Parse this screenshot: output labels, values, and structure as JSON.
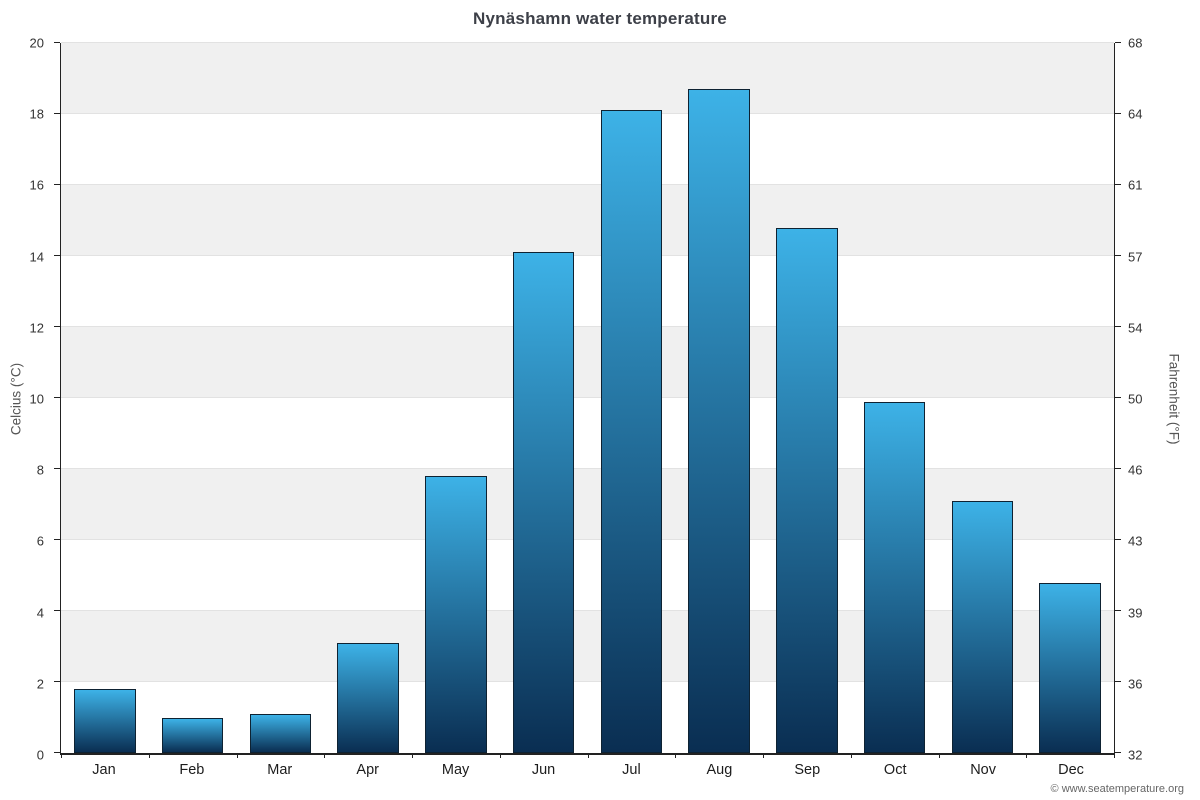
{
  "chart_data": {
    "type": "bar",
    "title": "Nynäshamn water temperature",
    "ylabel_left": "Celcius (°C)",
    "ylabel_right": "Fahrenheit (°F)",
    "categories": [
      "Jan",
      "Feb",
      "Mar",
      "Apr",
      "May",
      "Jun",
      "Jul",
      "Aug",
      "Sep",
      "Oct",
      "Nov",
      "Dec"
    ],
    "values": [
      1.8,
      1.0,
      1.1,
      3.1,
      7.8,
      14.1,
      18.1,
      18.7,
      14.8,
      9.9,
      7.1,
      4.8
    ],
    "ylim": [
      0,
      20
    ],
    "yticks_celsius": [
      0,
      2,
      4,
      6,
      8,
      10,
      12,
      14,
      16,
      18,
      20
    ],
    "yticks_fahrenheit": [
      32,
      36,
      39,
      43,
      46,
      50,
      54,
      57,
      61,
      64,
      68
    ],
    "grid": true,
    "legend": false,
    "colors": {
      "bar_top": "#3db2e7",
      "bar_bottom": "#0a2e52",
      "bar_border": "#0e2232",
      "band_a": "#ffffff",
      "band_b": "#f0f0f0",
      "gridline": "#e2e2e2",
      "axis": "#222222",
      "title_text": "#3d4048",
      "tick_text": "#333333",
      "axis_title_text": "#555555",
      "month_text": "#1c1c1c"
    }
  },
  "footer": {
    "copyright": "© www.seatemperature.org"
  }
}
